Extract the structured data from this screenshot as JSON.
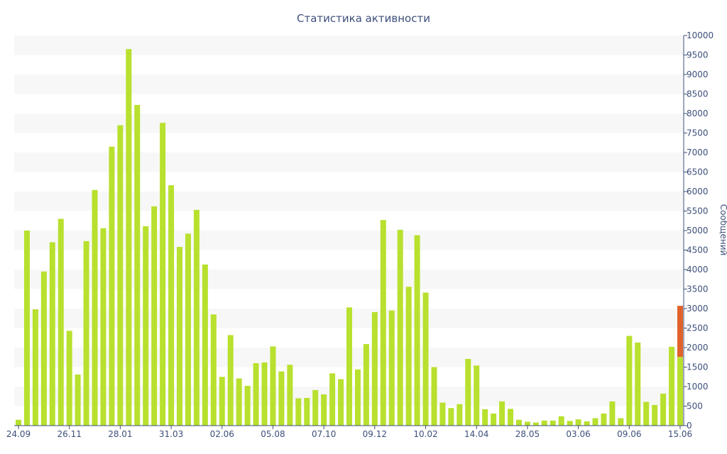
{
  "chart_data": {
    "type": "bar",
    "title": "Статистика активности",
    "ylabel": "Сообщений",
    "xlabel": "",
    "ylim": [
      0,
      10000
    ],
    "y_ticks": [
      0,
      500,
      1000,
      1500,
      2000,
      2500,
      3000,
      3500,
      4000,
      4500,
      5000,
      5500,
      6000,
      6500,
      7000,
      7500,
      8000,
      8500,
      9000,
      9500,
      10000
    ],
    "y_axis_side": "right",
    "x_tick_labels": [
      {
        "index": 0,
        "label": "24.09"
      },
      {
        "index": 6,
        "label": "26.11"
      },
      {
        "index": 12,
        "label": "28.01"
      },
      {
        "index": 18,
        "label": "31.03"
      },
      {
        "index": 24,
        "label": "02.06"
      },
      {
        "index": 30,
        "label": "05.08"
      },
      {
        "index": 36,
        "label": "07.10"
      },
      {
        "index": 42,
        "label": "09.12"
      },
      {
        "index": 48,
        "label": "10.02"
      },
      {
        "index": 54,
        "label": "14.04"
      },
      {
        "index": 60,
        "label": "28.05"
      },
      {
        "index": 66,
        "label": "03.06"
      },
      {
        "index": 72,
        "label": "09.06"
      },
      {
        "index": 78,
        "label": "15.06"
      }
    ],
    "grid": "alternating horizontal bands",
    "legend": "none",
    "colors": {
      "bar": "#b8e02e",
      "highlight": "#e0622a",
      "band": "#f7f7f7",
      "text": "#3d4f7a"
    },
    "series": [
      {
        "values": [
          150,
          5000,
          2980,
          3950,
          4700,
          5300,
          2430,
          1310,
          4730,
          6040,
          5060,
          7150,
          7700,
          9650,
          8220,
          5110,
          5620,
          7760,
          6160,
          4580,
          4920,
          5530,
          4130,
          2850,
          1250,
          2320,
          1210,
          1020,
          1600,
          1620,
          2030,
          1390,
          1560,
          700,
          710,
          910,
          800,
          1340,
          1190,
          3030,
          1440,
          2090,
          2910,
          5270,
          2950,
          5020,
          3560,
          4880,
          3410,
          1500,
          590,
          450,
          550,
          1710,
          1540,
          420,
          310,
          620,
          430,
          150,
          100,
          80,
          130,
          130,
          240,
          120,
          160,
          110,
          190,
          310,
          620,
          190,
          2300,
          2130,
          610,
          530,
          820,
          2020,
          1760
        ]
      }
    ],
    "highlight_overlay": {
      "index": 78,
      "value": 3070
    }
  }
}
